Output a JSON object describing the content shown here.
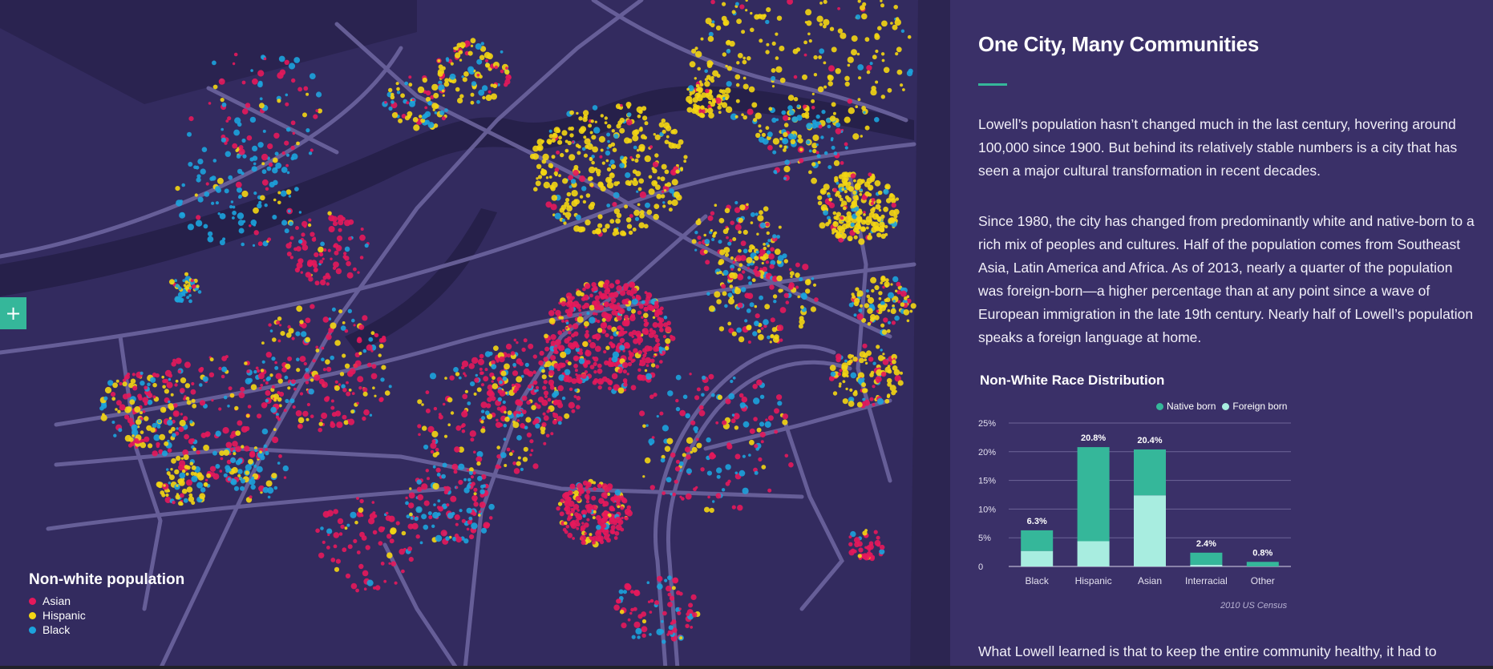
{
  "map": {
    "zoom_in_label": "+",
    "legend": {
      "title": "Non-white population",
      "items": [
        {
          "label": "Asian",
          "color": "#e5185b"
        },
        {
          "label": "Hispanic",
          "color": "#f4d613"
        },
        {
          "label": "Black",
          "color": "#1ca3dd"
        }
      ]
    }
  },
  "article": {
    "title": "One City, Many Communities",
    "paragraph1": "Lowell’s population hasn’t changed much in the last century, hovering around 100,000 since 1900. But behind its relatively stable numbers is a city that has seen a major cultural transformation in recent decades.",
    "paragraph2": "Since 1980, the city has changed from predominantly white and native-born to a rich mix of peoples and cultures. Half of the population comes from Southeast Asia, Latin America and Africa. As of 2013, nearly a quarter of the population was foreign-born—a higher percentage than at any point since a wave of European immigration in the late 19th century. Nearly half of Lowell’s population speaks a foreign language at home.",
    "paragraph3": "What Lowell learned is that to keep the entire community healthy, it had to"
  },
  "chart_data": {
    "type": "bar",
    "title": "Non-White Race Distribution",
    "source": "2010 US Census",
    "categories": [
      "Black",
      "Hispanic",
      "Asian",
      "Interracial",
      "Other"
    ],
    "series": [
      {
        "name": "Native born",
        "color": "#35b79a",
        "values": [
          3.6,
          16.4,
          8.0,
          2.1,
          0.8
        ]
      },
      {
        "name": "Foreign born",
        "color": "#a8ede0",
        "values": [
          2.7,
          4.4,
          12.4,
          0.3,
          0.0
        ]
      }
    ],
    "totals": [
      "6.3%",
      "20.8%",
      "20.4%",
      "2.4%",
      "0.8%"
    ],
    "ylim": [
      0,
      25
    ],
    "yticks": [
      "0",
      "5%",
      "10%",
      "15%",
      "20%",
      "25%"
    ],
    "xlabel": "",
    "ylabel": ""
  }
}
